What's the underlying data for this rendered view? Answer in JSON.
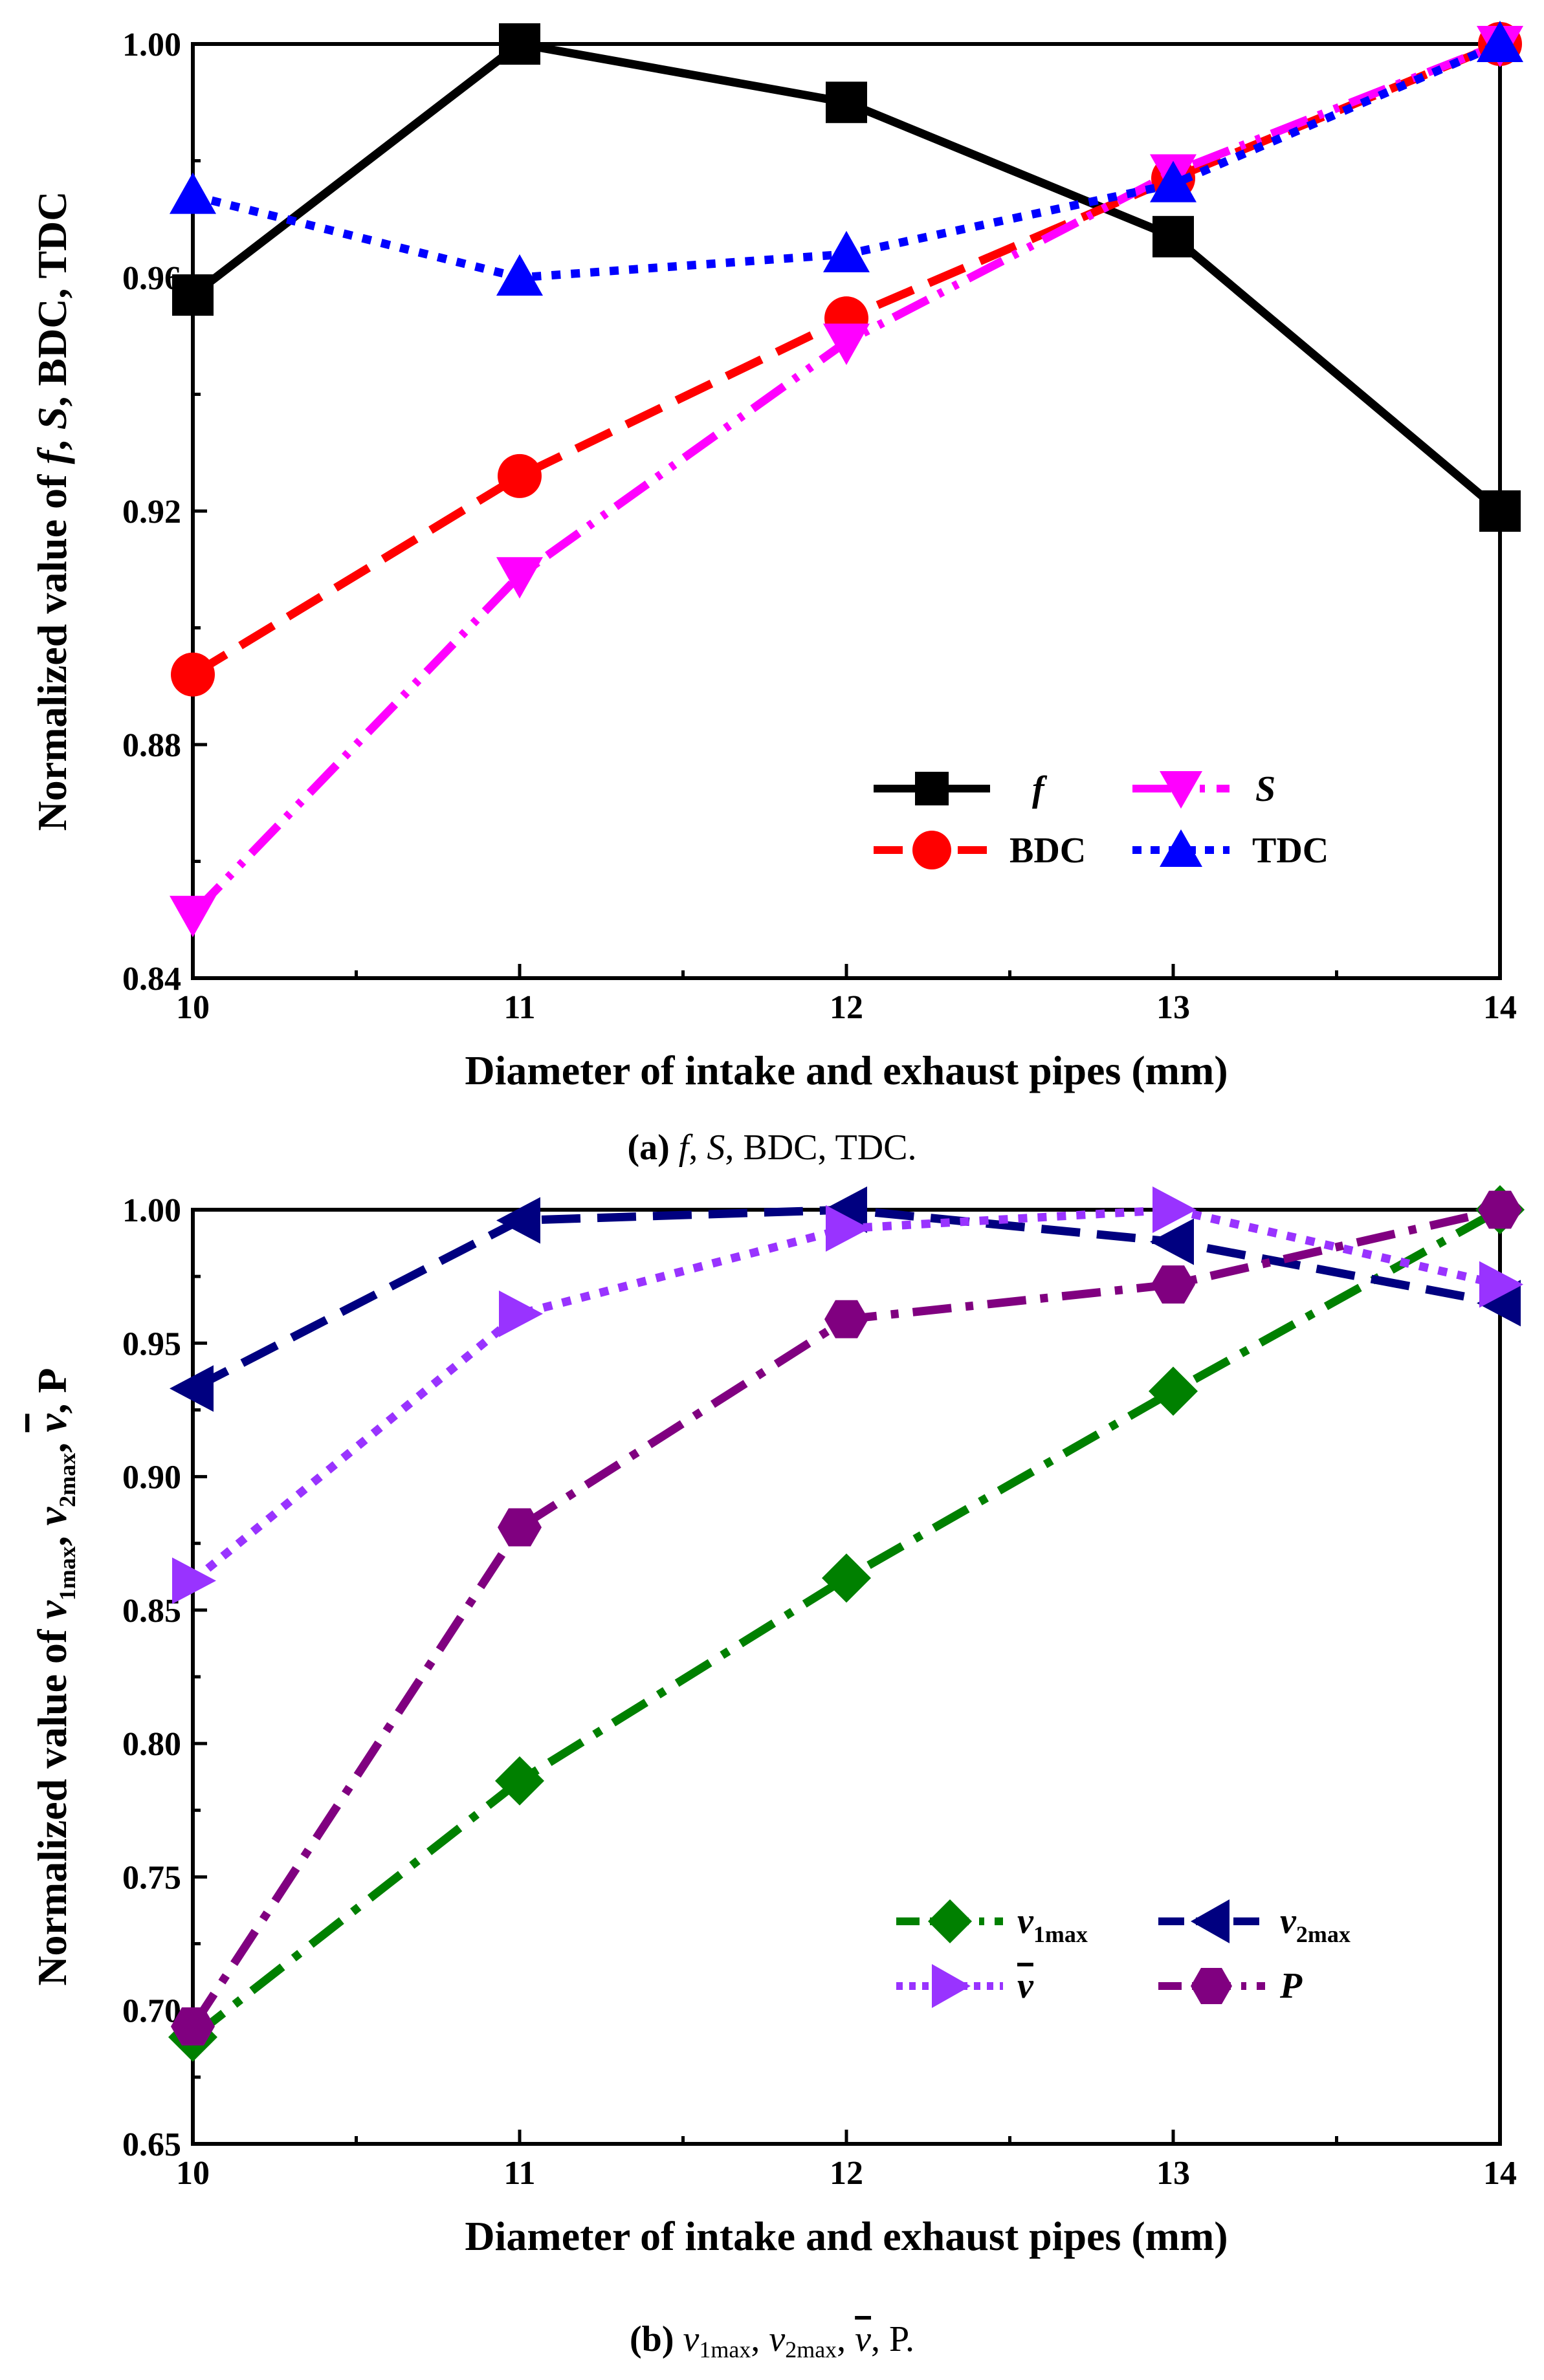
{
  "chart_data": [
    {
      "type": "line",
      "id": "a",
      "x": [
        10,
        11,
        12,
        13,
        14
      ],
      "xlim": [
        10,
        14
      ],
      "ylim": [
        0.84,
        1.0
      ],
      "xticks": [
        "10",
        "11",
        "12",
        "13",
        "14"
      ],
      "yticks": [
        "0.84",
        "0.88",
        "0.92",
        "0.96",
        "1.00"
      ],
      "xlabel": "Diameter of intake and exhaust pipes (mm)",
      "ylabel": {
        "pre": "Normalized value of ",
        "f": "f",
        "c1": ", ",
        "s": "S",
        "post": ", BDC, TDC"
      },
      "caption": {
        "label": "(a)",
        "f": "f",
        "c1": ", ",
        "s": "S",
        "rest": ", BDC, TDC."
      },
      "series": [
        {
          "name": "f",
          "color": "#000000",
          "dash": "solid",
          "marker": "square",
          "values": [
            0.957,
            1.0,
            0.99,
            0.967,
            0.92
          ]
        },
        {
          "name": "BDC",
          "color": "#ff0000",
          "dash": "dash",
          "marker": "circle",
          "values": [
            0.892,
            0.926,
            0.953,
            0.977,
            1.0
          ]
        },
        {
          "name": "S",
          "color": "#ff00ff",
          "dash": "dashdotdot",
          "marker": "triangle-down",
          "values": [
            0.851,
            0.909,
            0.949,
            0.978,
            1.0
          ]
        },
        {
          "name": "TDC",
          "color": "#0000ff",
          "dash": "dot",
          "marker": "triangle-up",
          "values": [
            0.974,
            0.96,
            0.964,
            0.976,
            1.0
          ]
        }
      ]
    },
    {
      "type": "line",
      "id": "b",
      "x": [
        10,
        11,
        12,
        13,
        14
      ],
      "xlim": [
        10,
        14
      ],
      "ylim": [
        0.65,
        1.0
      ],
      "xticks": [
        "10",
        "11",
        "12",
        "13",
        "14"
      ],
      "yticks": [
        "0.65",
        "0.70",
        "0.75",
        "0.80",
        "0.85",
        "0.90",
        "0.95",
        "1.00"
      ],
      "xlabel": "Diameter of intake and exhaust pipes (mm)",
      "ylabel": {
        "pre": "Normalized value of ",
        "v": "v",
        "sub1": "1max",
        "c": ", ",
        "sub2": "2max",
        "vbar": "v",
        "post": ", P"
      },
      "caption": {
        "label": "(b)",
        "v": "v",
        "sub1": "1max",
        "c": ", ",
        "sub2": "2max",
        "vbar": "v",
        "rest": ", P."
      },
      "series": [
        {
          "name": "v",
          "sub": "1max",
          "color": "#008000",
          "dash": "dashdot",
          "marker": "diamond",
          "values": [
            0.69,
            0.786,
            0.862,
            0.932,
            1.0
          ]
        },
        {
          "name": "v",
          "sub": "2max",
          "color": "#000080",
          "dash": "dash",
          "marker": "triangle-left",
          "values": [
            0.933,
            0.996,
            1.0,
            0.988,
            0.965
          ]
        },
        {
          "name": "v",
          "overbar": true,
          "color": "#9933ff",
          "dash": "dot",
          "marker": "triangle-right",
          "values": [
            0.861,
            0.961,
            0.993,
            1.0,
            0.972
          ]
        },
        {
          "name": "P",
          "color": "#800080",
          "dash": "dashdot",
          "marker": "hexagon",
          "values": [
            0.694,
            0.881,
            0.959,
            0.972,
            1.0
          ]
        }
      ]
    }
  ]
}
